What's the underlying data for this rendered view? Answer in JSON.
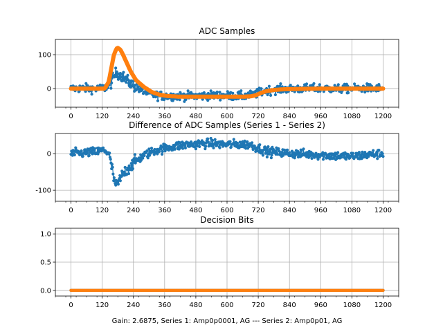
{
  "chart_data": [
    {
      "type": "scatter",
      "title": "ADC Samples",
      "xlim": [
        -60,
        1260
      ],
      "ylim": [
        -55,
        145
      ],
      "x_ticks": [
        0,
        120,
        240,
        360,
        480,
        600,
        720,
        840,
        960,
        1080,
        1200
      ],
      "y_ticks": [
        0,
        100
      ],
      "grid": true,
      "series": [
        {
          "color": "#1f77b4",
          "x": [
            0,
            50,
            100,
            130,
            150,
            165,
            175,
            185,
            200,
            220,
            240,
            270,
            300,
            330,
            360,
            420,
            480,
            540,
            600,
            660,
            700,
            730,
            760,
            800,
            840,
            900,
            960,
            1020,
            1080,
            1140,
            1200
          ],
          "y": [
            0,
            1,
            -1,
            2,
            12,
            35,
            48,
            42,
            35,
            20,
            10,
            -5,
            -15,
            -20,
            -22,
            -22,
            -22,
            -20,
            -21,
            -22,
            -19,
            -10,
            -5,
            -2,
            -1,
            0,
            1,
            -1,
            0,
            1,
            0
          ]
        },
        {
          "color": "#ff7f0e",
          "x": [
            0,
            100,
            130,
            145,
            155,
            165,
            175,
            180,
            190,
            200,
            215,
            230,
            250,
            280,
            310,
            340,
            370,
            420,
            480,
            540,
            600,
            660,
            690,
            710,
            730,
            750,
            780,
            820,
            880,
            960,
            1040,
            1120,
            1200
          ],
          "y": [
            0,
            0,
            0,
            20,
            60,
            100,
            118,
            120,
            115,
            100,
            75,
            50,
            25,
            5,
            -10,
            -18,
            -22,
            -24,
            -24,
            -24,
            -24,
            -24,
            -23,
            -20,
            -13,
            -8,
            -4,
            -2,
            -1,
            0,
            0,
            0,
            0
          ]
        }
      ],
      "noise_amplitude": 12
    },
    {
      "type": "scatter",
      "title": "Difference of ADC Samples (Series 1 - Series 2)",
      "xlim": [
        -60,
        1260
      ],
      "ylim": [
        -130,
        55
      ],
      "x_ticks": [
        0,
        120,
        240,
        360,
        480,
        600,
        720,
        840,
        960,
        1080,
        1200
      ],
      "y_ticks": [
        0,
        -100
      ],
      "grid": true,
      "series": [
        {
          "color": "#1f77b4",
          "x": [
            0,
            50,
            100,
            130,
            145,
            155,
            165,
            175,
            185,
            200,
            220,
            250,
            280,
            320,
            380,
            450,
            520,
            600,
            650,
            690,
            720,
            760,
            800,
            860,
            920,
            1000,
            1080,
            1140,
            1200
          ],
          "y": [
            0,
            2,
            5,
            10,
            0,
            -30,
            -70,
            -90,
            -75,
            -55,
            -40,
            -20,
            -5,
            8,
            18,
            25,
            28,
            25,
            25,
            25,
            15,
            5,
            3,
            0,
            -2,
            -5,
            -8,
            -3,
            0
          ]
        }
      ],
      "noise_amplitude": 12
    },
    {
      "type": "scatter",
      "title": "Decision Bits",
      "xlim": [
        -60,
        1260
      ],
      "ylim": [
        -0.1,
        1.1
      ],
      "x_ticks": [
        0,
        120,
        240,
        360,
        480,
        600,
        720,
        840,
        960,
        1080,
        1200
      ],
      "y_ticks": [
        0.0,
        0.5,
        1.0
      ],
      "y_tick_labels": [
        "0.0",
        "0.5",
        "1.0"
      ],
      "grid": true,
      "series": [
        {
          "color": "#1f77b4",
          "x": [
            0,
            1200
          ],
          "y": [
            0,
            0
          ]
        },
        {
          "color": "#ff7f0e",
          "x": [
            0,
            1200
          ],
          "y": [
            0,
            0
          ]
        }
      ],
      "xlabel": "Gain: 2.6875, Series 1: Amp0p0001, AG --- Series 2: Amp0p01, AG"
    }
  ]
}
